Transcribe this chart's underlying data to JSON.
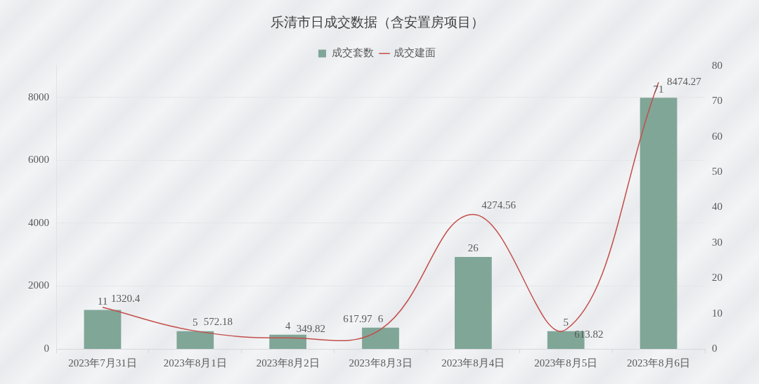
{
  "chart_data": {
    "type": "bar",
    "title": "乐清市日成交数据（含安置房项目）",
    "categories": [
      "2023年7月31日",
      "2023年8月1日",
      "2023年8月2日",
      "2023年8月3日",
      "2023年8月4日",
      "2023年8月5日",
      "2023年8月6日"
    ],
    "series": [
      {
        "name": "成交套数",
        "axis": "y2",
        "color": "#80a698",
        "values": [
          11,
          5,
          4,
          6,
          26,
          5,
          71
        ]
      },
      {
        "name": "成交建面",
        "type": "line",
        "color": "#c44e4a",
        "values": [
          1320.4,
          572.18,
          349.82,
          617.97,
          4274.56,
          613.82,
          8474.27
        ]
      }
    ],
    "ylim": [
      0,
      9000
    ],
    "yticks": [
      0,
      2000,
      4000,
      6000,
      8000
    ],
    "y2lim": [
      0,
      80
    ],
    "y2ticks": [
      0,
      10,
      20,
      30,
      40,
      50,
      60,
      70,
      80
    ],
    "data_labels": true,
    "legend": "top",
    "grid": "y",
    "marker": "none"
  }
}
